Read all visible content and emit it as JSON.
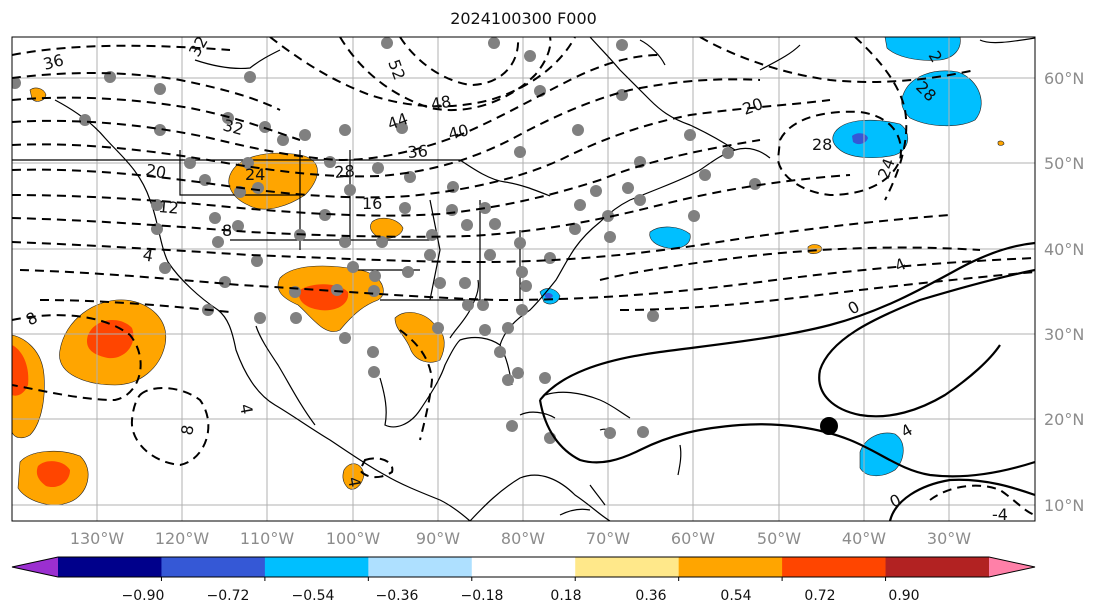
{
  "title": "2024100300 F000",
  "lon_labels": [
    "130°W",
    "120°W",
    "110°W",
    "100°W",
    "90°W",
    "80°W",
    "70°W",
    "60°W",
    "50°W",
    "40°W",
    "30°W"
  ],
  "lat_labels": [
    "60°N",
    "50°N",
    "40°N",
    "30°N",
    "20°N",
    "10°N"
  ],
  "colorbar": {
    "colors": [
      "#9b2fd0",
      "#00008b",
      "#3558d6",
      "#00bfff",
      "#aee0ff",
      "#ffffff",
      "#ffe88a",
      "#ffa500",
      "#ff4500",
      "#b22222",
      "#ff80a8"
    ],
    "tick_labels": [
      "−0.90",
      "−0.72",
      "−0.54",
      "−0.36",
      "−0.18",
      "0.18",
      "0.36",
      "0.54",
      "0.72",
      "0.90"
    ]
  },
  "contour_labels": [
    "36",
    "32",
    "44",
    "48",
    "40",
    "52",
    "36",
    "32",
    "28",
    "24",
    "20",
    "16",
    "12",
    "8",
    "4",
    "8",
    "4",
    "8",
    "28",
    "24",
    "20",
    "28",
    "4",
    "0",
    "4",
    "0",
    "-4",
    "4",
    "2"
  ],
  "marker": "storm-center"
}
